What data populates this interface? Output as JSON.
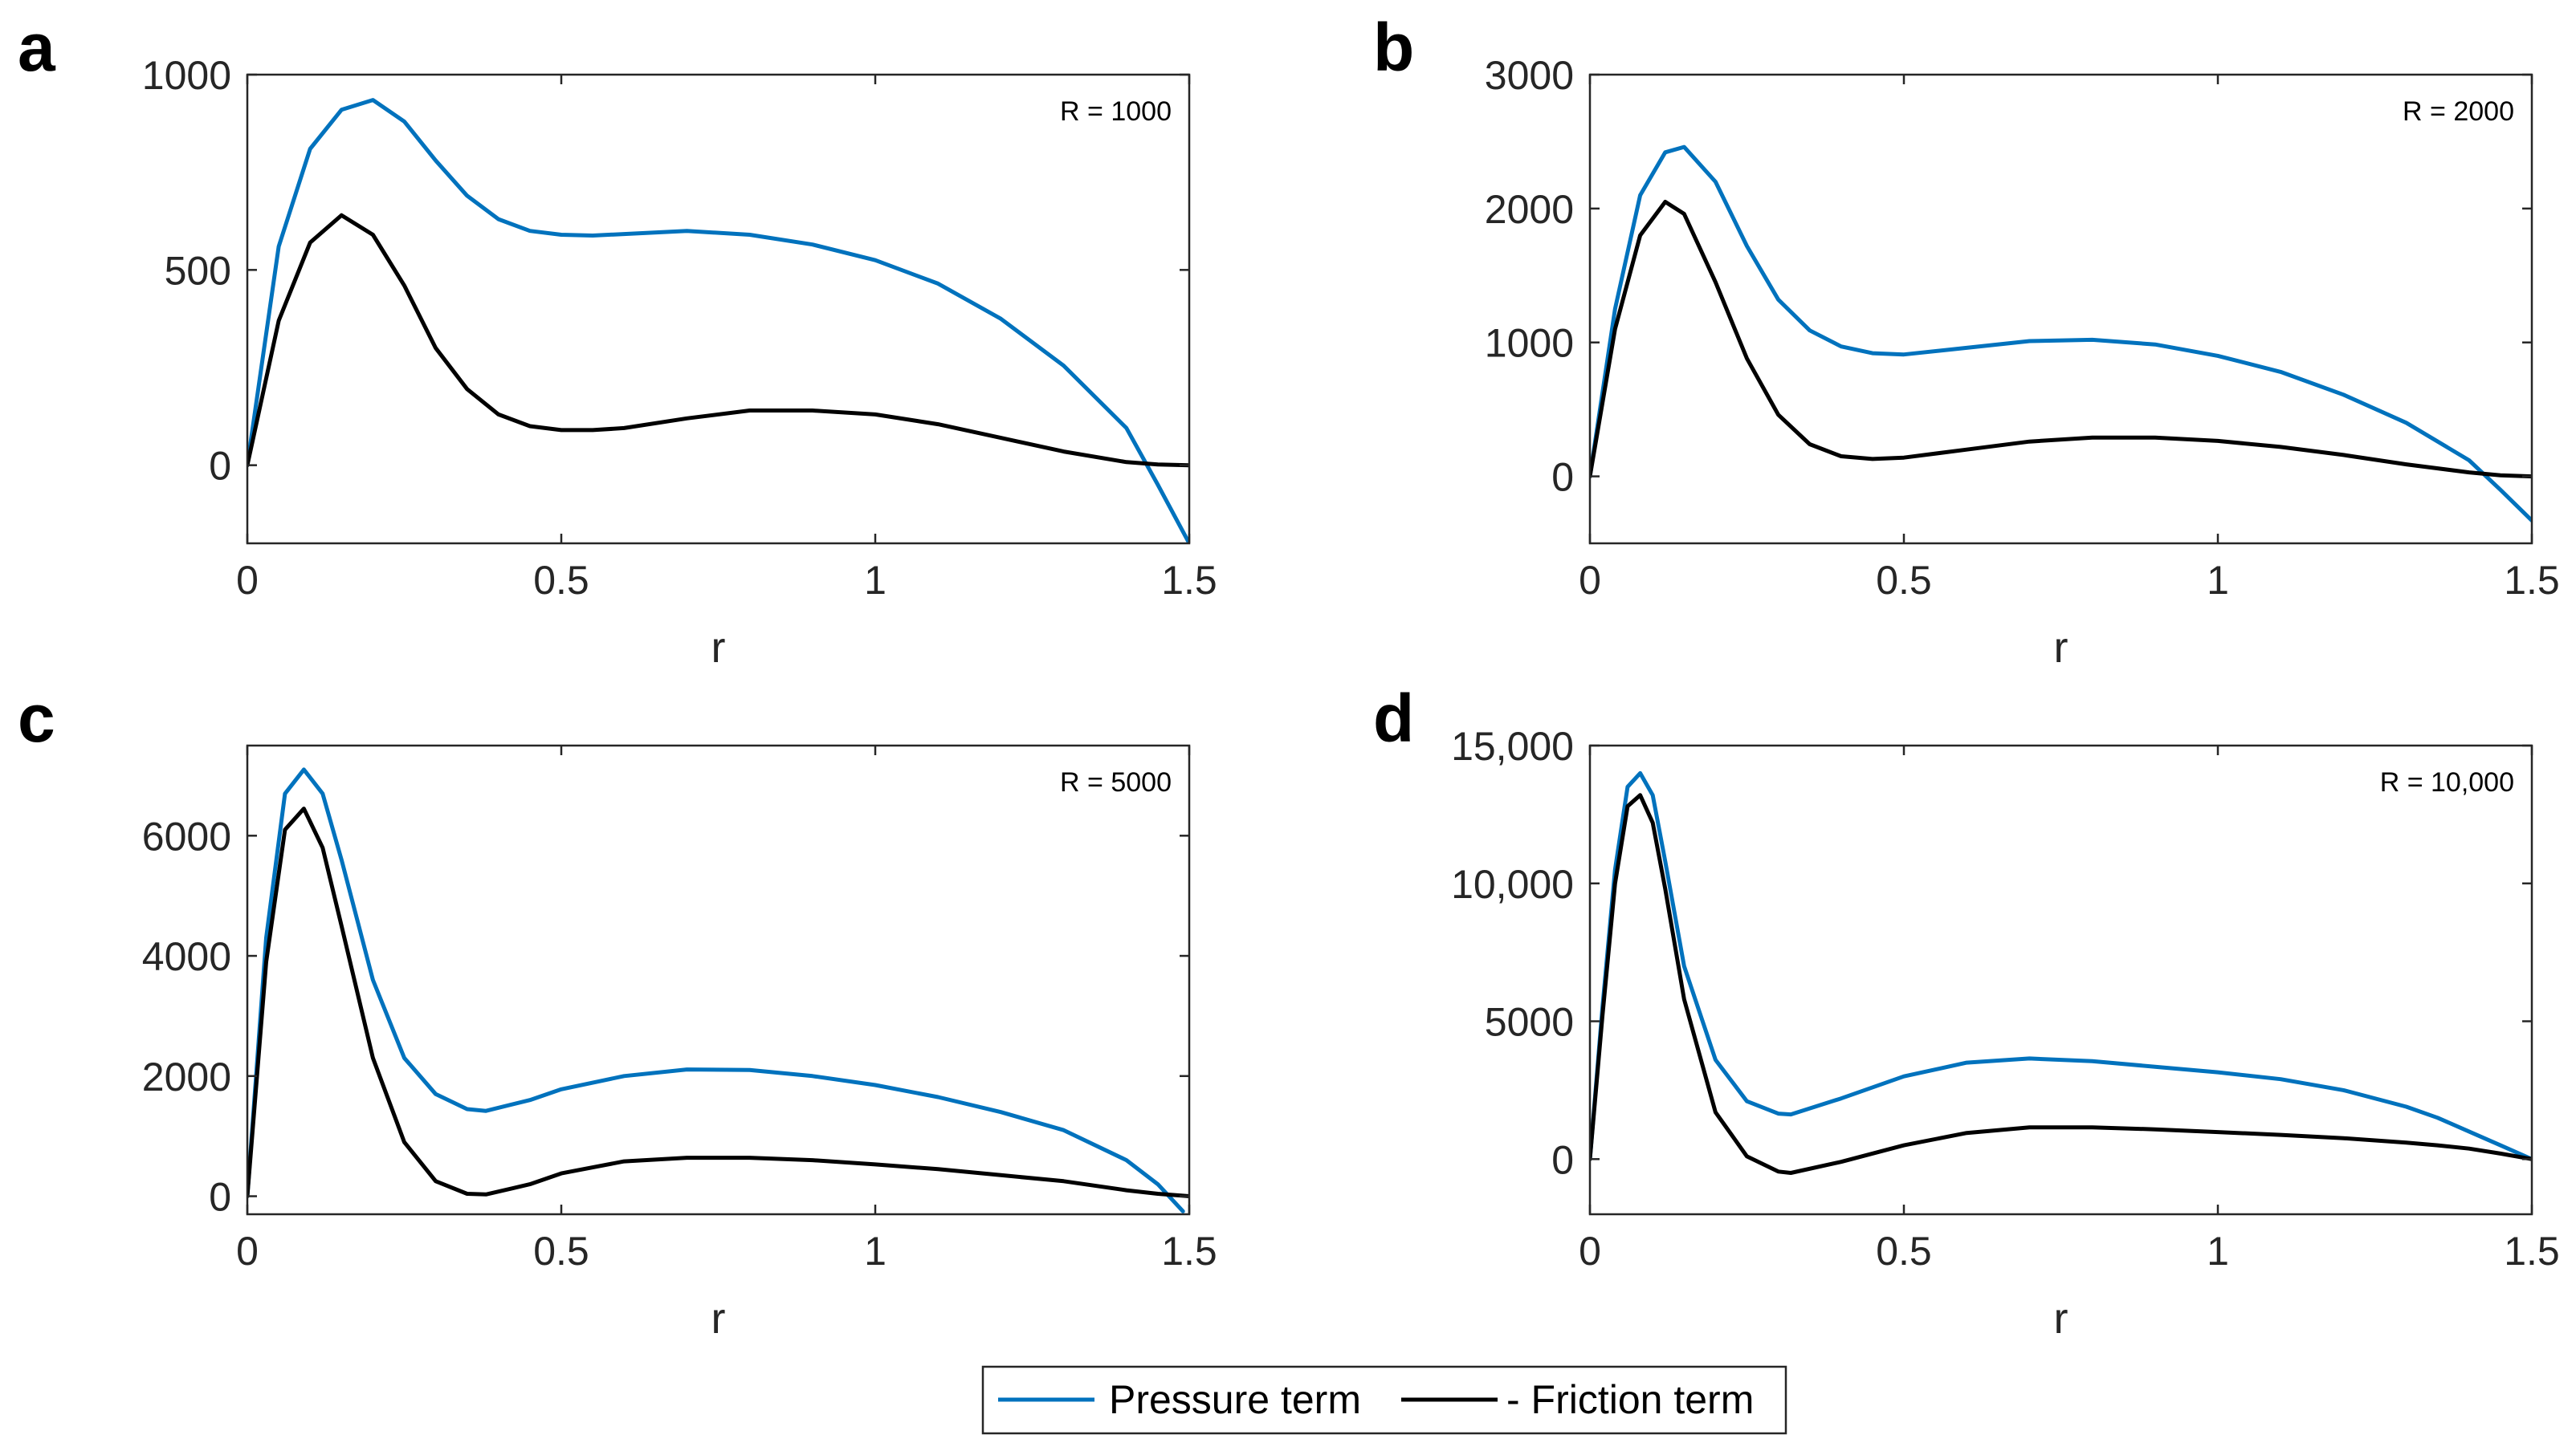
{
  "colors": {
    "pressure": "#0072BD",
    "friction": "#000000",
    "axis": "#262626"
  },
  "legend": {
    "entries": [
      "Pressure term",
      "- Friction term"
    ],
    "location": "bottom-center"
  },
  "chart_data": [
    {
      "type": "line",
      "panel": "a",
      "annotation": "R = 1000",
      "xlabel": "r",
      "ylabel": "",
      "xlim": [
        0,
        1.5
      ],
      "ylim": [
        -200,
        1000
      ],
      "xticks": [
        0,
        0.5,
        1,
        1.5
      ],
      "xtick_labels": [
        "0",
        "0.5",
        "1",
        "1.5"
      ],
      "yticks": [
        0,
        500,
        1000
      ],
      "ytick_labels": [
        "0",
        "500",
        "1000"
      ],
      "series": [
        {
          "name": "Pressure term",
          "x": [
            0,
            0.05,
            0.1,
            0.15,
            0.2,
            0.25,
            0.3,
            0.35,
            0.4,
            0.45,
            0.5,
            0.55,
            0.6,
            0.7,
            0.8,
            0.9,
            1.0,
            1.1,
            1.2,
            1.3,
            1.4,
            1.45,
            1.5
          ],
          "y": [
            0,
            560,
            810,
            910,
            935,
            880,
            780,
            690,
            630,
            600,
            590,
            588,
            592,
            600,
            590,
            565,
            525,
            465,
            375,
            255,
            95,
            -50,
            -200
          ]
        },
        {
          "name": "- Friction term",
          "x": [
            0,
            0.05,
            0.1,
            0.15,
            0.2,
            0.25,
            0.3,
            0.35,
            0.4,
            0.45,
            0.5,
            0.55,
            0.6,
            0.7,
            0.8,
            0.9,
            1.0,
            1.1,
            1.2,
            1.3,
            1.4,
            1.45,
            1.5
          ],
          "y": [
            0,
            370,
            570,
            640,
            590,
            460,
            300,
            195,
            130,
            100,
            90,
            90,
            95,
            120,
            140,
            140,
            130,
            105,
            70,
            35,
            8,
            2,
            0
          ]
        }
      ]
    },
    {
      "type": "line",
      "panel": "b",
      "annotation": "R = 2000",
      "xlabel": "r",
      "ylabel": "",
      "xlim": [
        0,
        1.5
      ],
      "ylim": [
        -500,
        3000
      ],
      "xticks": [
        0,
        0.5,
        1,
        1.5
      ],
      "xtick_labels": [
        "0",
        "0.5",
        "1",
        "1.5"
      ],
      "yticks": [
        0,
        1000,
        2000,
        3000
      ],
      "ytick_labels": [
        "0",
        "1000",
        "2000",
        "3000"
      ],
      "series": [
        {
          "name": "Pressure term",
          "x": [
            0,
            0.04,
            0.08,
            0.12,
            0.15,
            0.2,
            0.25,
            0.3,
            0.35,
            0.4,
            0.45,
            0.5,
            0.6,
            0.7,
            0.8,
            0.9,
            1.0,
            1.1,
            1.2,
            1.3,
            1.4,
            1.45,
            1.5
          ],
          "y": [
            0,
            1250,
            2100,
            2420,
            2460,
            2200,
            1720,
            1320,
            1090,
            970,
            920,
            910,
            960,
            1010,
            1020,
            985,
            900,
            780,
            610,
            400,
            120,
            -100,
            -330
          ]
        },
        {
          "name": "- Friction term",
          "x": [
            0,
            0.04,
            0.08,
            0.12,
            0.15,
            0.2,
            0.25,
            0.3,
            0.35,
            0.4,
            0.45,
            0.5,
            0.6,
            0.7,
            0.8,
            0.9,
            1.0,
            1.1,
            1.2,
            1.3,
            1.4,
            1.45,
            1.5
          ],
          "y": [
            0,
            1100,
            1800,
            2050,
            1960,
            1450,
            880,
            460,
            240,
            150,
            130,
            140,
            200,
            260,
            290,
            290,
            265,
            220,
            160,
            90,
            30,
            8,
            0
          ]
        }
      ]
    },
    {
      "type": "line",
      "panel": "c",
      "annotation": "R = 5000",
      "xlabel": "r",
      "ylabel": "",
      "xlim": [
        0,
        1.5
      ],
      "ylim": [
        -300,
        7500
      ],
      "xticks": [
        0,
        0.5,
        1,
        1.5
      ],
      "xtick_labels": [
        "0",
        "0.5",
        "1",
        "1.5"
      ],
      "yticks": [
        0,
        2000,
        4000,
        6000
      ],
      "ytick_labels": [
        "0",
        "2000",
        "4000",
        "6000"
      ],
      "series": [
        {
          "name": "Pressure term",
          "x": [
            0,
            0.03,
            0.06,
            0.09,
            0.12,
            0.15,
            0.2,
            0.25,
            0.3,
            0.35,
            0.38,
            0.45,
            0.5,
            0.6,
            0.7,
            0.8,
            0.9,
            1.0,
            1.1,
            1.2,
            1.3,
            1.4,
            1.45,
            1.49
          ],
          "y": [
            0,
            4300,
            6700,
            7100,
            6700,
            5600,
            3600,
            2300,
            1700,
            1450,
            1420,
            1600,
            1780,
            2000,
            2110,
            2100,
            2000,
            1850,
            1650,
            1400,
            1100,
            600,
            200,
            -250
          ]
        },
        {
          "name": "- Friction term",
          "x": [
            0,
            0.03,
            0.06,
            0.09,
            0.12,
            0.15,
            0.2,
            0.25,
            0.3,
            0.35,
            0.38,
            0.45,
            0.5,
            0.6,
            0.7,
            0.8,
            0.9,
            1.0,
            1.1,
            1.2,
            1.3,
            1.4,
            1.45,
            1.5
          ],
          "y": [
            0,
            3900,
            6100,
            6450,
            5800,
            4500,
            2300,
            900,
            250,
            40,
            30,
            200,
            380,
            580,
            640,
            640,
            600,
            530,
            450,
            350,
            250,
            100,
            40,
            0
          ]
        }
      ]
    },
    {
      "type": "line",
      "panel": "d",
      "annotation": "R = 10,000",
      "xlabel": "r",
      "ylabel": "",
      "xlim": [
        0,
        1.5
      ],
      "ylim": [
        -2000,
        15000
      ],
      "xticks": [
        0,
        0.5,
        1,
        1.5
      ],
      "xtick_labels": [
        "0",
        "0.5",
        "1",
        "1.5"
      ],
      "yticks": [
        0,
        5000,
        10000,
        15000
      ],
      "ytick_labels": [
        "0",
        "5000",
        "10,000",
        "15,000"
      ],
      "series": [
        {
          "name": "Pressure term",
          "x": [
            0,
            0.02,
            0.04,
            0.06,
            0.08,
            0.1,
            0.12,
            0.15,
            0.2,
            0.25,
            0.3,
            0.32,
            0.4,
            0.5,
            0.6,
            0.7,
            0.8,
            0.9,
            1.0,
            1.1,
            1.2,
            1.3,
            1.35,
            1.4,
            1.45,
            1.5
          ],
          "y": [
            0,
            5500,
            10500,
            13500,
            14000,
            13200,
            10800,
            7000,
            3600,
            2100,
            1650,
            1620,
            2200,
            3000,
            3500,
            3650,
            3550,
            3350,
            3150,
            2900,
            2500,
            1900,
            1500,
            1000,
            500,
            0
          ]
        },
        {
          "name": "- Friction term",
          "x": [
            0,
            0.02,
            0.04,
            0.06,
            0.08,
            0.1,
            0.12,
            0.15,
            0.2,
            0.25,
            0.3,
            0.32,
            0.4,
            0.5,
            0.6,
            0.7,
            0.8,
            0.9,
            1.0,
            1.1,
            1.2,
            1.3,
            1.35,
            1.4,
            1.45,
            1.5
          ],
          "y": [
            0,
            5200,
            10000,
            12800,
            13200,
            12200,
            9800,
            5800,
            1700,
            100,
            -450,
            -500,
            -100,
            500,
            950,
            1150,
            1150,
            1080,
            980,
            880,
            760,
            600,
            500,
            380,
            200,
            0
          ]
        }
      ]
    }
  ]
}
